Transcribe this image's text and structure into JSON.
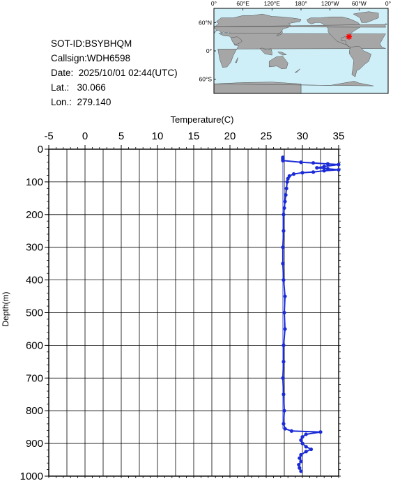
{
  "info": {
    "sot_id": "SOT-ID:BSYBHQM",
    "callsign": "Callsign:WDH6598",
    "date": "Date:  2025/10/01 02:44(UTC)",
    "lat": "Lat.:   30.066",
    "lon": "Lon.:  279.140"
  },
  "map": {
    "top_ticks": [
      "0°",
      "60°E",
      "120°E",
      "180°",
      "120°W",
      "60°W",
      "0°"
    ],
    "lat_ticks": [
      "60°N",
      "0°",
      "60°S"
    ],
    "ocean_color": "#cfeff8",
    "land_color": "#a6a6a6",
    "marker_color": "#ff0000",
    "marker": {
      "lon": 279.14,
      "lat": 30.066
    }
  },
  "chart_data": {
    "type": "line",
    "xlabel": "Temperature(C)",
    "ylabel": "Depth(m)",
    "xlim": [
      -5,
      35
    ],
    "ylim": [
      0,
      1000
    ],
    "y_inverted": true,
    "x_ticks": [
      "-5",
      "0",
      "5",
      "10",
      "15",
      "20",
      "25",
      "30",
      "35"
    ],
    "y_ticks": [
      "0",
      "100",
      "200",
      "300",
      "400",
      "500",
      "600",
      "700",
      "800",
      "900",
      "1000"
    ],
    "grid": true,
    "series": [
      {
        "color": "#1a2bd6",
        "points": [
          [
            27.3,
            25
          ],
          [
            27.3,
            30
          ],
          [
            27.3,
            35
          ],
          [
            29.8,
            40
          ],
          [
            31.5,
            42
          ],
          [
            33.5,
            45
          ],
          [
            35,
            47
          ],
          [
            33,
            53
          ],
          [
            32,
            57
          ],
          [
            33.5,
            60
          ],
          [
            35,
            63
          ],
          [
            33,
            66
          ],
          [
            31.5,
            70
          ],
          [
            30,
            72
          ],
          [
            28.8,
            76
          ],
          [
            28.2,
            82
          ],
          [
            28,
            90
          ],
          [
            27.9,
            100
          ],
          [
            27.8,
            120
          ],
          [
            27.7,
            140
          ],
          [
            27.6,
            160
          ],
          [
            27.5,
            180
          ],
          [
            27.4,
            200
          ],
          [
            27.4,
            250
          ],
          [
            27.3,
            300
          ],
          [
            27.3,
            350
          ],
          [
            27.4,
            400
          ],
          [
            27.6,
            450
          ],
          [
            27.5,
            500
          ],
          [
            27.6,
            550
          ],
          [
            27.4,
            600
          ],
          [
            27.4,
            650
          ],
          [
            27.3,
            700
          ],
          [
            27.4,
            750
          ],
          [
            27.5,
            800
          ],
          [
            27.4,
            840
          ],
          [
            27.6,
            855
          ],
          [
            28.5,
            862
          ],
          [
            32.5,
            865
          ],
          [
            30.5,
            872
          ],
          [
            30,
            880
          ],
          [
            29.8,
            890
          ],
          [
            30,
            900
          ],
          [
            30.5,
            910
          ],
          [
            31.2,
            918
          ],
          [
            30.5,
            925
          ],
          [
            29.8,
            935
          ],
          [
            29.6,
            945
          ],
          [
            29.8,
            955
          ],
          [
            29.5,
            965
          ],
          [
            29.6,
            975
          ],
          [
            29.8,
            985
          ]
        ]
      }
    ]
  }
}
